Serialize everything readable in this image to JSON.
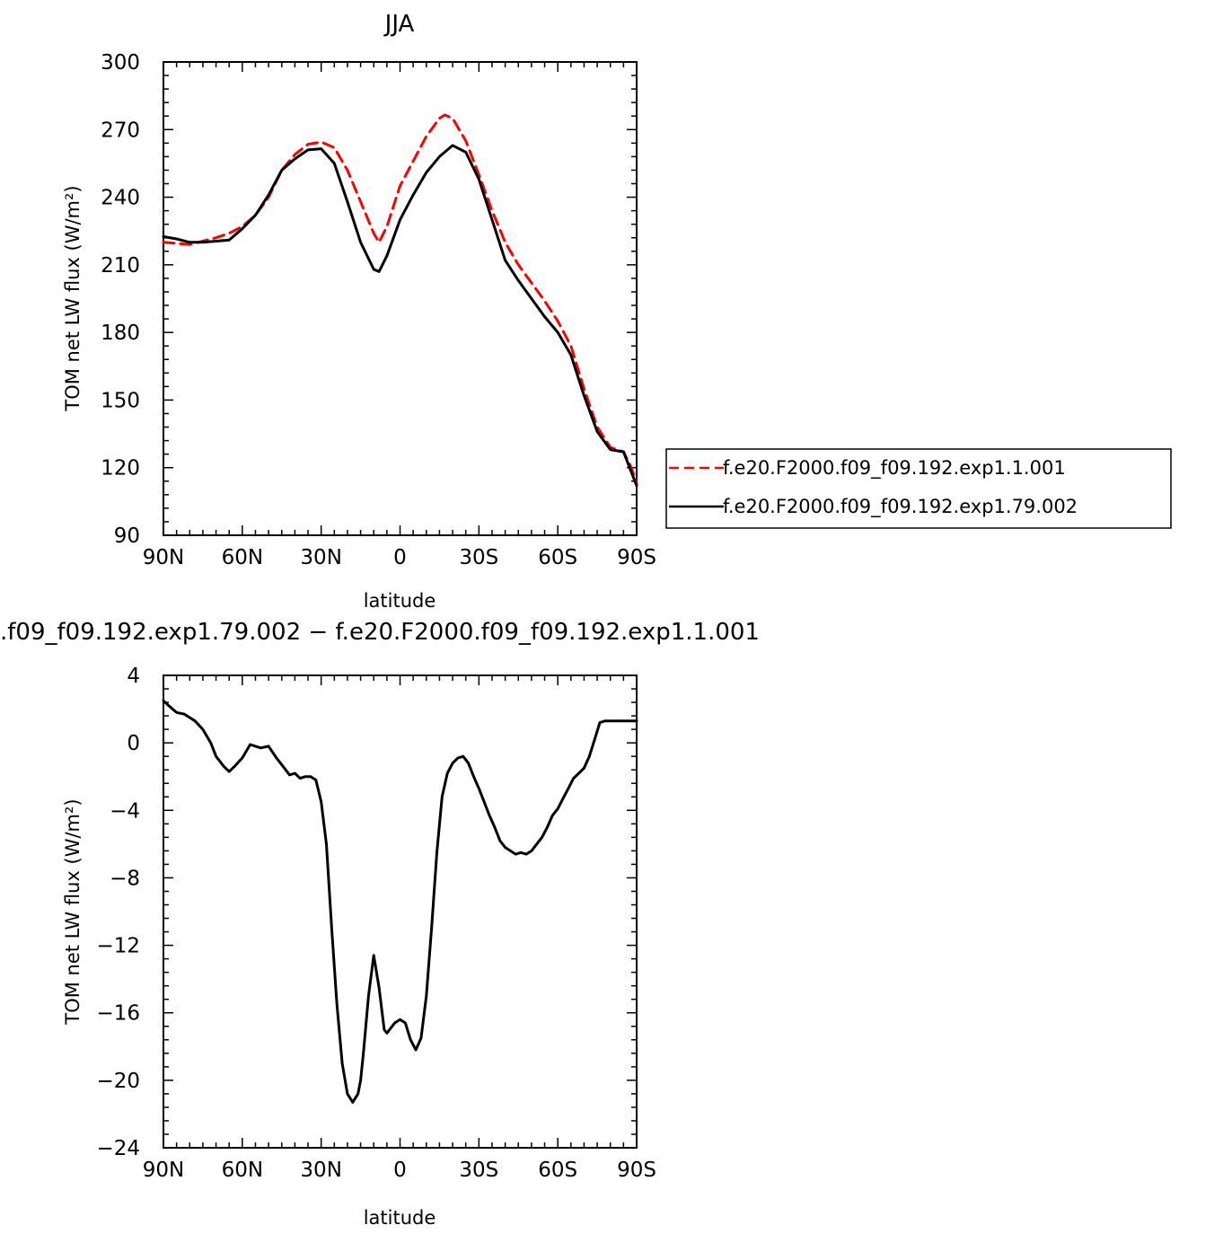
{
  "chart_data": [
    {
      "type": "line",
      "title": "JJA",
      "xlabel": "latitude",
      "ylabel": "TOM net LW flux (W/m²)",
      "xlim": [
        90,
        -90
      ],
      "ylim": [
        90,
        300
      ],
      "x_ticks": [
        90,
        60,
        30,
        0,
        -30,
        -60,
        -90
      ],
      "x_tick_labels": [
        "90N",
        "60N",
        "30N",
        "0",
        "30S",
        "60S",
        "90S"
      ],
      "y_ticks": [
        90,
        120,
        150,
        180,
        210,
        240,
        270,
        300
      ],
      "y_tick_labels": [
        "90",
        "120",
        "150",
        "180",
        "210",
        "240",
        "270",
        "300"
      ],
      "legend_position": "right",
      "series": [
        {
          "name": "f.e20.F2000.f09_f09.192.exp1.1.001",
          "color": "#ff0000",
          "dash": "dashed",
          "x": [
            90,
            85,
            80,
            75,
            70,
            65,
            60,
            55,
            50,
            45,
            40,
            35,
            30,
            25,
            20,
            15,
            10,
            8,
            5,
            0,
            -5,
            -10,
            -15,
            -17,
            -20,
            -25,
            -30,
            -35,
            -40,
            -45,
            -50,
            -55,
            -60,
            -65,
            -70,
            -75,
            -80,
            -85,
            -88,
            -90
          ],
          "y": [
            220,
            219.5,
            219,
            220.5,
            222,
            224,
            227,
            232,
            240,
            252,
            259,
            263.5,
            264.5,
            262,
            252,
            238,
            224,
            220,
            227,
            245,
            256,
            267,
            275,
            276.5,
            275,
            265,
            250,
            234,
            220,
            210,
            202,
            194,
            185,
            174,
            155,
            138,
            129,
            127,
            120,
            113
          ]
        },
        {
          "name": "f.e20.F2000.f09_f09.192.exp1.79.002",
          "color": "#000000",
          "dash": "solid",
          "x": [
            90,
            85,
            80,
            75,
            70,
            65,
            60,
            55,
            50,
            45,
            40,
            35,
            30,
            25,
            20,
            15,
            10,
            8,
            5,
            0,
            -5,
            -10,
            -15,
            -20,
            -25,
            -30,
            -35,
            -40,
            -45,
            -50,
            -55,
            -60,
            -65,
            -70,
            -75,
            -80,
            -85,
            -88,
            -90
          ],
          "y": [
            222.5,
            221.5,
            220,
            220,
            220.5,
            221,
            226,
            232,
            241,
            252,
            257,
            261,
            261.5,
            255,
            238,
            220,
            208,
            207,
            214,
            230,
            241,
            251,
            258,
            263,
            260,
            248,
            230,
            212,
            203,
            195,
            187,
            180,
            170,
            152,
            136,
            128,
            127,
            118,
            112
          ]
        }
      ]
    },
    {
      "type": "line",
      "title": ".f09_f09.192.exp1.79.002 − f.e20.F2000.f09_f09.192.exp1.1.001",
      "xlabel": "latitude",
      "ylabel": "TOM net LW flux (W/m²)",
      "xlim": [
        90,
        -90
      ],
      "ylim": [
        -24,
        4
      ],
      "x_ticks": [
        90,
        60,
        30,
        0,
        -30,
        -60,
        -90
      ],
      "x_tick_labels": [
        "90N",
        "60N",
        "30N",
        "0",
        "30S",
        "60S",
        "90S"
      ],
      "y_ticks": [
        -24,
        -20,
        -16,
        -12,
        -8,
        -4,
        0,
        4
      ],
      "y_tick_labels": [
        "−24",
        "−20",
        "−16",
        "−12",
        "−8",
        "−4",
        "0",
        "4"
      ],
      "series": [
        {
          "color": "#000000",
          "dash": "solid",
          "x": [
            90,
            88,
            85,
            82,
            80,
            78,
            75,
            72,
            70,
            67,
            65,
            63,
            60,
            57,
            55,
            53,
            50,
            47,
            45,
            42,
            40,
            38,
            36,
            34,
            32,
            30,
            28,
            26,
            24,
            22,
            20,
            18,
            16,
            15,
            14,
            12,
            10,
            8,
            6,
            5,
            4,
            2,
            0,
            -2,
            -4,
            -6,
            -8,
            -10,
            -12,
            -14,
            -16,
            -18,
            -20,
            -22,
            -24,
            -26,
            -28,
            -30,
            -32,
            -34,
            -36,
            -38,
            -40,
            -42,
            -44,
            -46,
            -48,
            -50,
            -52,
            -54,
            -56,
            -58,
            -60,
            -62,
            -64,
            -66,
            -68,
            -70,
            -72,
            -74,
            -76,
            -78,
            -80,
            -82,
            -84,
            -86,
            -88,
            -90
          ],
          "y": [
            2.5,
            2.2,
            1.8,
            1.7,
            1.5,
            1.3,
            0.8,
            0,
            -0.8,
            -1.4,
            -1.7,
            -1.4,
            -0.9,
            -0.1,
            -0.2,
            -0.3,
            -0.2,
            -0.9,
            -1.3,
            -1.9,
            -1.8,
            -2.1,
            -2.0,
            -2.0,
            -2.2,
            -3.5,
            -6.0,
            -11.0,
            -15.5,
            -19.0,
            -20.8,
            -21.3,
            -20.8,
            -20.0,
            -18.5,
            -15.0,
            -12.6,
            -14.5,
            -17.0,
            -17.2,
            -17.0,
            -16.6,
            -16.4,
            -16.6,
            -17.6,
            -18.2,
            -17.5,
            -15.0,
            -11.0,
            -6.5,
            -3.2,
            -1.8,
            -1.2,
            -0.9,
            -0.8,
            -1.2,
            -2.0,
            -2.7,
            -3.5,
            -4.3,
            -5.0,
            -5.8,
            -6.2,
            -6.4,
            -6.6,
            -6.5,
            -6.6,
            -6.4,
            -6.0,
            -5.6,
            -5.0,
            -4.3,
            -3.9,
            -3.3,
            -2.7,
            -2.1,
            -1.8,
            -1.5,
            -0.8,
            0.2,
            1.2,
            1.3,
            1.3,
            1.3,
            1.3,
            1.3,
            1.3,
            1.3
          ]
        }
      ]
    }
  ]
}
